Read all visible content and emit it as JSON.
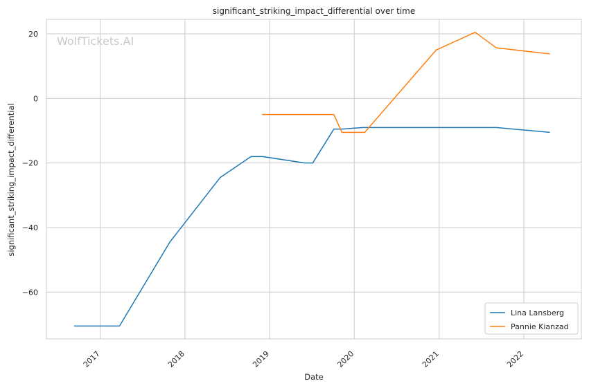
{
  "chart_data": {
    "type": "line",
    "title": "significant_striking_impact_differential over time",
    "xlabel": "Date",
    "ylabel": "significant_striking_impact_differential",
    "watermark": "WolfTickets.AI",
    "x_ticks": [
      "2017",
      "2018",
      "2019",
      "2020",
      "2021",
      "2022"
    ],
    "y_ticks": [
      20,
      0,
      -20,
      -40,
      -60
    ],
    "y_tick_labels": [
      "20",
      "0",
      "−20",
      "−40",
      "−60"
    ],
    "xlim": [
      "2016-05-14",
      "2022-09-06"
    ],
    "ylim": [
      -74.5,
      24.5
    ],
    "grid": true,
    "legend_position": "bottom-right",
    "series": [
      {
        "name": "Lina Lansberg",
        "color": "#1f77b4",
        "points": [
          [
            "2016-09-10",
            -70.5
          ],
          [
            "2017-03-25",
            -70.5
          ],
          [
            "2017-10-28",
            -44.5
          ],
          [
            "2018-06-02",
            -24.5
          ],
          [
            "2018-10-13",
            -18.0
          ],
          [
            "2018-12-01",
            -18.0
          ],
          [
            "2019-06-01",
            -20.0
          ],
          [
            "2019-07-06",
            -20.0
          ],
          [
            "2019-10-05",
            -9.5
          ],
          [
            "2019-11-09",
            -9.5
          ],
          [
            "2020-02-08",
            -9.0
          ],
          [
            "2020-05-30",
            -9.0
          ],
          [
            "2020-12-15",
            -9.0
          ],
          [
            "2021-05-15",
            -9.0
          ],
          [
            "2021-09-04",
            -9.0
          ],
          [
            "2022-04-23",
            -10.5
          ]
        ]
      },
      {
        "name": "Pannie Kianzad",
        "color": "#ff7f0e",
        "points": [
          [
            "2018-11-30",
            -5.0
          ],
          [
            "2019-10-05",
            -5.0
          ],
          [
            "2019-11-09",
            -10.5
          ],
          [
            "2020-02-15",
            -10.5
          ],
          [
            "2020-12-19",
            15.0
          ],
          [
            "2021-06-05",
            20.5
          ],
          [
            "2021-09-04",
            15.7
          ],
          [
            "2022-04-23",
            13.8
          ]
        ]
      }
    ]
  }
}
